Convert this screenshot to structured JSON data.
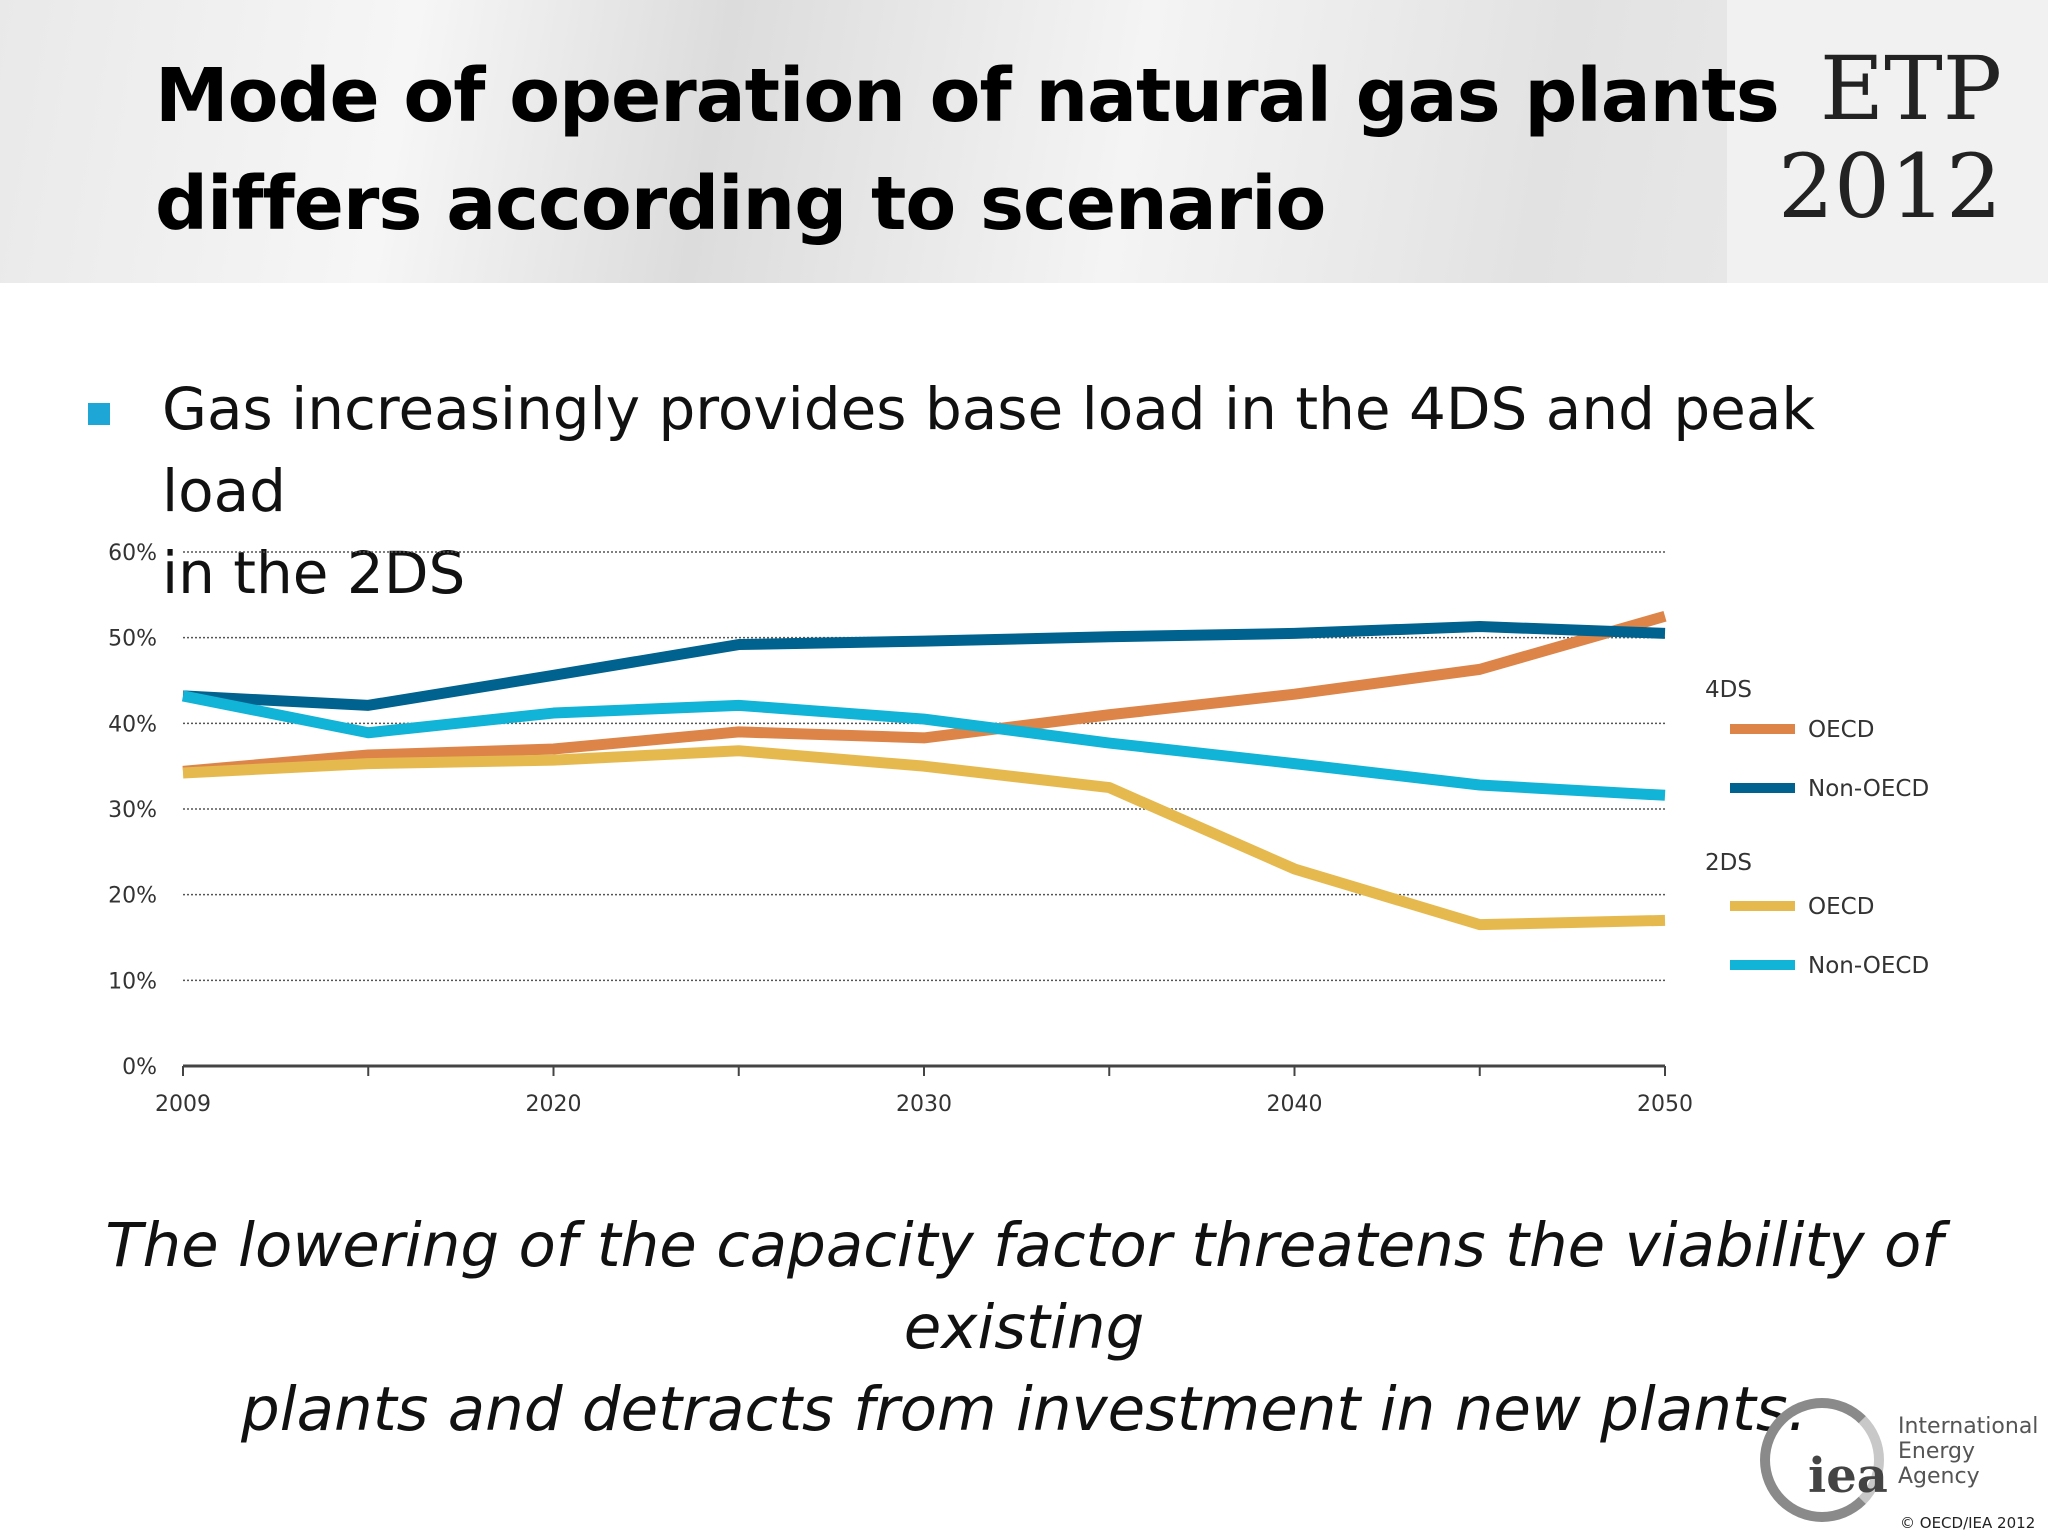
{
  "header": {
    "title_line1": "Mode of operation of natural gas plants",
    "title_line2": "differs according to scenario",
    "badge_line1": "ETP",
    "badge_line2": "2012"
  },
  "bullet": {
    "line1": "Gas increasingly provides base load in the 4DS and peak load",
    "line2": "in the 2DS",
    "marker_color": "#1ea7d6"
  },
  "conclusion": {
    "line1": "The lowering of the capacity factor threatens the viability of existing",
    "line2": "plants and detracts from investment in new plants."
  },
  "footer": {
    "logo_text": "iea",
    "org_line1": "International",
    "org_line2": "Energy Agency",
    "copyright": "© OECD/IEA 2012"
  },
  "chart_data": {
    "type": "line",
    "x": [
      2009,
      2015,
      2020,
      2025,
      2030,
      2035,
      2040,
      2045,
      2050
    ],
    "x_tick_labels": [
      "2009",
      "",
      "2020",
      "",
      "2030",
      "",
      "2040",
      "",
      "2050"
    ],
    "y_tick_labels": [
      "0%",
      "10%",
      "20%",
      "30%",
      "40%",
      "50%",
      "60%"
    ],
    "ylim": [
      0,
      60
    ],
    "grid": true,
    "legend_position": "right",
    "legend_groups": [
      "4DS",
      "2DS"
    ],
    "series": [
      {
        "group": "4DS",
        "name": "OECD",
        "color": "#dd8449",
        "values": [
          34.4,
          36.3,
          37,
          39,
          38.3,
          41,
          43.4,
          46.3,
          52.5
        ]
      },
      {
        "group": "4DS",
        "name": "Non-OECD",
        "color": "#00628e",
        "values": [
          43.2,
          42.1,
          45.6,
          49.2,
          49.6,
          50.1,
          50.5,
          51.3,
          50.5
        ]
      },
      {
        "group": "2DS",
        "name": "OECD",
        "color": "#e6b94e",
        "values": [
          34.2,
          35.3,
          35.7,
          36.8,
          35,
          32.5,
          23,
          16.5,
          17
        ]
      },
      {
        "group": "2DS",
        "name": "Non-OECD",
        "color": "#11b3d6",
        "values": [
          43.2,
          38.9,
          41.2,
          42.1,
          40.5,
          37.7,
          35.3,
          32.8,
          31.6
        ]
      }
    ]
  }
}
